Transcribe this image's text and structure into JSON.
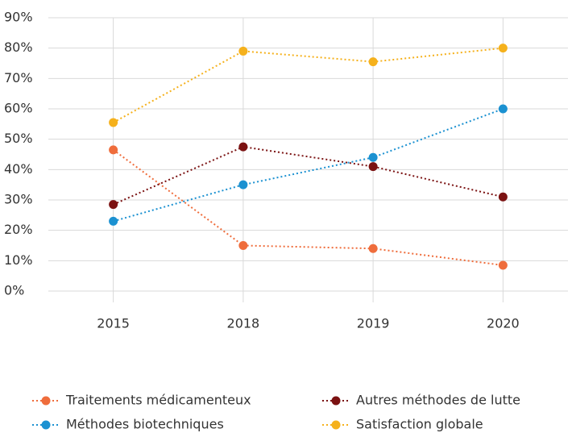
{
  "chart_data": {
    "type": "line",
    "categories": [
      "2015",
      "2018",
      "2019",
      "2020"
    ],
    "series": [
      {
        "name": "Traitements médicamenteux",
        "color": "#ef6d3c",
        "values": [
          46.5,
          15,
          14,
          8.5
        ]
      },
      {
        "name": "Autres méthodes de lutte",
        "color": "#7b1212",
        "values": [
          28.5,
          47.5,
          41,
          31
        ]
      },
      {
        "name": "Méthodes biotechniques",
        "color": "#1b91d1",
        "values": [
          23,
          35,
          44,
          60
        ]
      },
      {
        "name": "Satisfaction globale",
        "color": "#f5b11c",
        "values": [
          55.5,
          79,
          75.5,
          80
        ]
      }
    ],
    "ylim": [
      0,
      90
    ],
    "yticks": [
      {
        "value": 0,
        "label": "0%"
      },
      {
        "value": 10,
        "label": "10%"
      },
      {
        "value": 20,
        "label": "20%"
      },
      {
        "value": 30,
        "label": "30%"
      },
      {
        "value": 40,
        "label": "40%"
      },
      {
        "value": 50,
        "label": "50%"
      },
      {
        "value": 60,
        "label": "60%"
      },
      {
        "value": 70,
        "label": "70%"
      },
      {
        "value": 80,
        "label": "80%"
      },
      {
        "value": 90,
        "label": "90%"
      }
    ],
    "grid": true
  }
}
